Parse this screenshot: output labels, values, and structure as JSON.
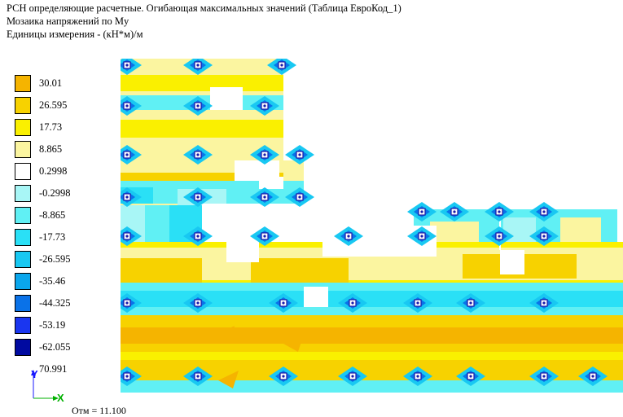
{
  "header": {
    "line1": "РСН определяющие расчетные. Огибающая максимальных значений (Таблица ЕвроКод_1)",
    "line2": "Мозаика напряжений по My",
    "line3": "Единицы измерения - (кН*м)/м"
  },
  "legend": [
    {
      "label": "30.01",
      "color": "#f5b400"
    },
    {
      "label": "26.595",
      "color": "#f7d200"
    },
    {
      "label": "17.73",
      "color": "#faf000"
    },
    {
      "label": "8.865",
      "color": "#fbf5a0"
    },
    {
      "label": "0.2998",
      "color": "#ffffff"
    },
    {
      "label": "-0.2998",
      "color": "#a8f6f6"
    },
    {
      "label": "-8.865",
      "color": "#60f0f4"
    },
    {
      "label": "-17.73",
      "color": "#2ae0f6"
    },
    {
      "label": "-26.595",
      "color": "#18c8f2"
    },
    {
      "label": "-35.46",
      "color": "#0aa6ec"
    },
    {
      "label": "-44.325",
      "color": "#0a72e8"
    },
    {
      "label": "-53.19",
      "color": "#1a36f0"
    },
    {
      "label": "-62.055",
      "color": "#000aa0"
    }
  ],
  "legend_bottom_label": "70.991",
  "axes": {
    "y_label": "Y",
    "x_label": "X"
  },
  "elevation": "Отм = 11.100"
}
